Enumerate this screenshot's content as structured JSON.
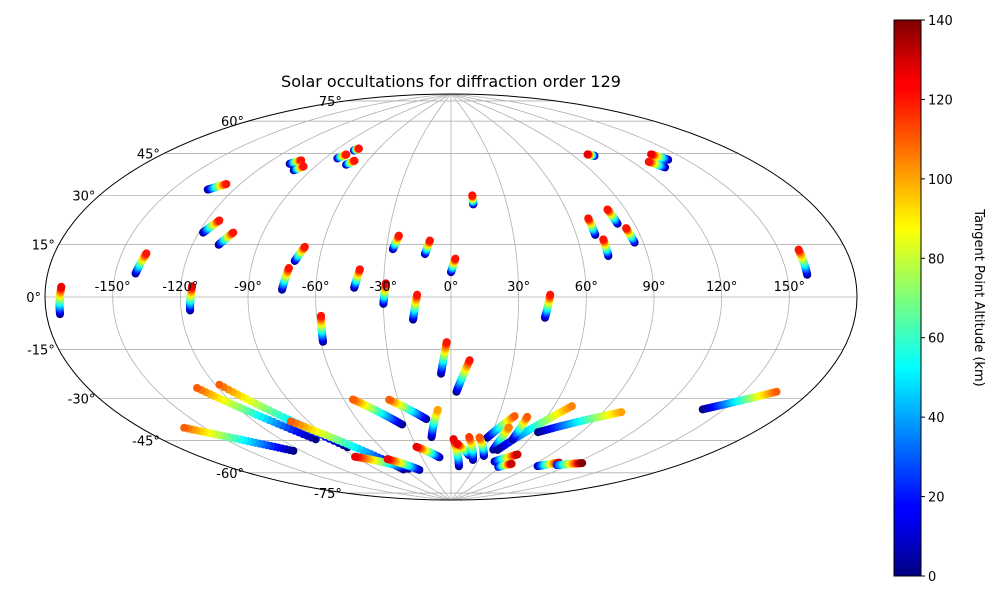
{
  "chart_data": {
    "type": "scatter",
    "projection": "aitoff",
    "title": "Solar occultations for diffraction order 129",
    "xlabel": "",
    "ylabel": "",
    "grid": true,
    "longitude_ticks": [
      "-150°",
      "-120°",
      "-90°",
      "-60°",
      "-30°",
      "0°",
      "30°",
      "60°",
      "90°",
      "120°",
      "150°"
    ],
    "latitude_ticks": [
      {
        "lat": 75,
        "label": "75°"
      },
      {
        "lat": 60,
        "label": "60°"
      },
      {
        "lat": 45,
        "label": "45°"
      },
      {
        "lat": 30,
        "label": "30°"
      },
      {
        "lat": 15,
        "label": "15°"
      },
      {
        "lat": 0,
        "label": "0°"
      },
      {
        "lat": -15,
        "label": "-15°"
      },
      {
        "lat": -30,
        "label": "-30°"
      },
      {
        "lat": -45,
        "label": "-45°"
      },
      {
        "lat": -60,
        "label": "-60°"
      },
      {
        "lat": -75,
        "label": "-75°"
      }
    ],
    "colorbar": {
      "label": "Tangent Point Altitude (km)",
      "colormap": "jet",
      "range": [
        0,
        140
      ],
      "ticks": [
        "0",
        "20",
        "40",
        "60",
        "80",
        "100",
        "120",
        "140"
      ]
    },
    "tracks": [
      {
        "lon0": -174,
        "lat0": -5,
        "lon1": -173,
        "lat1": 3,
        "alt0": 0,
        "alt1": 125
      },
      {
        "lon0": -141,
        "lat0": 8,
        "lon1": -139,
        "lat1": 15,
        "alt0": 0,
        "alt1": 120
      },
      {
        "lon0": -133,
        "lat0": 39,
        "lon1": -127,
        "lat1": 42,
        "alt0": 0,
        "alt1": 120
      },
      {
        "lon0": -118,
        "lat0": 24,
        "lon1": -114,
        "lat1": 29,
        "alt0": 0,
        "alt1": 120
      },
      {
        "lon0": -116,
        "lat0": -5,
        "lon1": -115,
        "lat1": 4,
        "alt0": 0,
        "alt1": 125
      },
      {
        "lon0": -108,
        "lat0": 20,
        "lon1": -104,
        "lat1": 25,
        "alt0": 0,
        "alt1": 120
      },
      {
        "lon0": -107,
        "lat0": 53,
        "lon1": -103,
        "lat1": 55,
        "alt0": 0,
        "alt1": 120
      },
      {
        "lon0": -100,
        "lat0": 51,
        "lon1": -97,
        "lat1": 53,
        "alt0": 0,
        "alt1": 120
      },
      {
        "lon0": -82,
        "lat0": 58,
        "lon1": -79,
        "lat1": 60,
        "alt0": 0,
        "alt1": 120
      },
      {
        "lon0": -77,
        "lat0": 62,
        "lon1": -75,
        "lat1": 63,
        "alt0": 0,
        "alt1": 120
      },
      {
        "lon0": -75,
        "lat0": 3,
        "lon1": -73,
        "lat1": 12,
        "alt0": 0,
        "alt1": 120
      },
      {
        "lon0": -71,
        "lat0": 15,
        "lon1": -68,
        "lat1": 21,
        "alt0": 0,
        "alt1": 120
      },
      {
        "lon0": -72,
        "lat0": 56,
        "lon1": -69,
        "lat1": 58,
        "alt0": 0,
        "alt1": 120
      },
      {
        "lon0": -59,
        "lat0": -19,
        "lon1": -58,
        "lat1": -8,
        "alt0": 0,
        "alt1": 120
      },
      {
        "lon0": -43,
        "lat0": 4,
        "lon1": -41,
        "lat1": 12,
        "alt0": 0,
        "alt1": 120
      },
      {
        "lon0": -30,
        "lat0": -3,
        "lon1": -29,
        "lat1": 6,
        "alt0": 0,
        "alt1": 125
      },
      {
        "lon0": -27,
        "lat0": 21,
        "lon1": -25,
        "lat1": 27,
        "alt0": 0,
        "alt1": 120
      },
      {
        "lon0": -17,
        "lat0": -10,
        "lon1": -15,
        "lat1": 1,
        "alt0": 0,
        "alt1": 120
      },
      {
        "lon0": -12,
        "lat0": 19,
        "lon1": -10,
        "lat1": 25,
        "alt0": 0,
        "alt1": 120
      },
      {
        "lon0": 0,
        "lat0": 11,
        "lon1": 2,
        "lat1": 17,
        "alt0": 0,
        "alt1": 120
      },
      {
        "lon0": 12,
        "lat0": 41,
        "lon1": 12,
        "lat1": 45,
        "alt0": 0,
        "alt1": 120
      },
      {
        "lon0": 42,
        "lat0": -9,
        "lon1": 44,
        "lat1": 1,
        "alt0": 0,
        "alt1": 120
      },
      {
        "lon0": 69,
        "lat0": 26,
        "lon1": 69,
        "lat1": 33,
        "alt0": 0,
        "alt1": 120
      },
      {
        "lon0": 72,
        "lat0": 17,
        "lon1": 72,
        "lat1": 24,
        "alt0": 0,
        "alt1": 120
      },
      {
        "lon0": 82,
        "lat0": 30,
        "lon1": 81,
        "lat1": 36,
        "alt0": 0,
        "alt1": 120
      },
      {
        "lon0": 86,
        "lat0": 22,
        "lon1": 85,
        "lat1": 28,
        "alt0": 0,
        "alt1": 120
      },
      {
        "lon0": 103,
        "lat0": 57,
        "lon1": 100,
        "lat1": 58,
        "alt0": 0,
        "alt1": 125
      },
      {
        "lon0": 133,
        "lat0": 48,
        "lon1": 129,
        "lat1": 51,
        "alt0": 0,
        "alt1": 120
      },
      {
        "lon0": 141,
        "lat0": 50,
        "lon1": 137,
        "lat1": 53,
        "alt0": 0,
        "alt1": 125
      },
      {
        "lon0": 159,
        "lat0": 7,
        "lon1": 159,
        "lat1": 15,
        "alt0": 0,
        "alt1": 120
      },
      {
        "lon0": -5,
        "lat0": -34,
        "lon1": -2,
        "lat1": -20,
        "alt0": 0,
        "alt1": 120
      },
      {
        "lon0": 3,
        "lat0": -42,
        "lon1": 9,
        "lat1": -28,
        "alt0": 0,
        "alt1": 120
      },
      {
        "lon0": 140,
        "lat0": -40,
        "lon1": 165,
        "lat1": -30,
        "alt0": 0,
        "alt1": 110
      },
      {
        "lon0": -125,
        "lat0": -60,
        "lon1": -160,
        "lat1": -44,
        "alt0": 0,
        "alt1": 110
      },
      {
        "lon0": -99,
        "lat0": -58,
        "lon1": -130,
        "lat1": -33,
        "alt0": 0,
        "alt1": 110
      },
      {
        "lon0": -85,
        "lat0": -63,
        "lon1": -118,
        "lat1": -33,
        "alt0": 0,
        "alt1": 110
      },
      {
        "lon0": -62,
        "lat0": -75,
        "lon1": -100,
        "lat1": -50,
        "alt0": 0,
        "alt1": 110
      },
      {
        "lon0": -33,
        "lat0": -56,
        "lon1": -55,
        "lat1": -44,
        "alt0": 0,
        "alt1": 110
      },
      {
        "lon0": -16,
        "lat0": -54,
        "lon1": -35,
        "lat1": -45,
        "alt0": 0,
        "alt1": 110
      },
      {
        "lon0": -15,
        "lat0": -62,
        "lon1": -8,
        "lat1": -50,
        "alt0": 0,
        "alt1": 100
      },
      {
        "lon0": 28,
        "lat0": -62,
        "lon1": 40,
        "lat1": -52,
        "alt0": 0,
        "alt1": 110
      },
      {
        "lon0": 38,
        "lat0": -67,
        "lon1": 40,
        "lat1": -57,
        "alt0": 0,
        "alt1": 105
      },
      {
        "lon0": 42,
        "lat0": -67,
        "lon1": 70,
        "lat1": -46,
        "alt0": 0,
        "alt1": 105
      },
      {
        "lon0": 48,
        "lat0": -62,
        "lon1": 48,
        "lat1": -52,
        "alt0": 0,
        "alt1": 110
      },
      {
        "lon0": 62,
        "lat0": -58,
        "lon1": 100,
        "lat1": -46,
        "alt0": 0,
        "alt1": 100
      },
      {
        "lon0": -55,
        "lat0": -75,
        "lon1": -90,
        "lat1": -67,
        "alt0": 0,
        "alt1": 125
      },
      {
        "lon0": -43,
        "lat0": -76,
        "lon1": -65,
        "lat1": -70,
        "alt0": 0,
        "alt1": 125
      },
      {
        "lon0": -12,
        "lat0": -71,
        "lon1": -30,
        "lat1": -66,
        "alt0": 0,
        "alt1": 125
      },
      {
        "lon0": 10,
        "lat0": -75,
        "lon1": 2,
        "lat1": -63,
        "alt0": 0,
        "alt1": 125
      },
      {
        "lon0": 18,
        "lat0": -70,
        "lon1": 5,
        "lat1": -65,
        "alt0": 0,
        "alt1": 125
      },
      {
        "lon0": 24,
        "lat0": -72,
        "lon1": 14,
        "lat1": -62,
        "alt0": 0,
        "alt1": 115
      },
      {
        "lon0": 33,
        "lat0": -70,
        "lon1": 22,
        "lat1": -62,
        "alt0": 0,
        "alt1": 110
      },
      {
        "lon0": 48,
        "lat0": -72,
        "lon1": 63,
        "lat1": -68,
        "alt0": 5,
        "alt1": 130
      },
      {
        "lon0": 58,
        "lat0": -74,
        "lon1": 68,
        "lat1": -72,
        "alt0": 10,
        "alt1": 130
      },
      {
        "lon0": 96,
        "lat0": -71,
        "lon1": 108,
        "lat1": -68,
        "alt0": 5,
        "alt1": 130
      },
      {
        "lon0": 110,
        "lat0": -69,
        "lon1": 125,
        "lat1": -66,
        "alt0": 20,
        "alt1": 140
      }
    ]
  }
}
